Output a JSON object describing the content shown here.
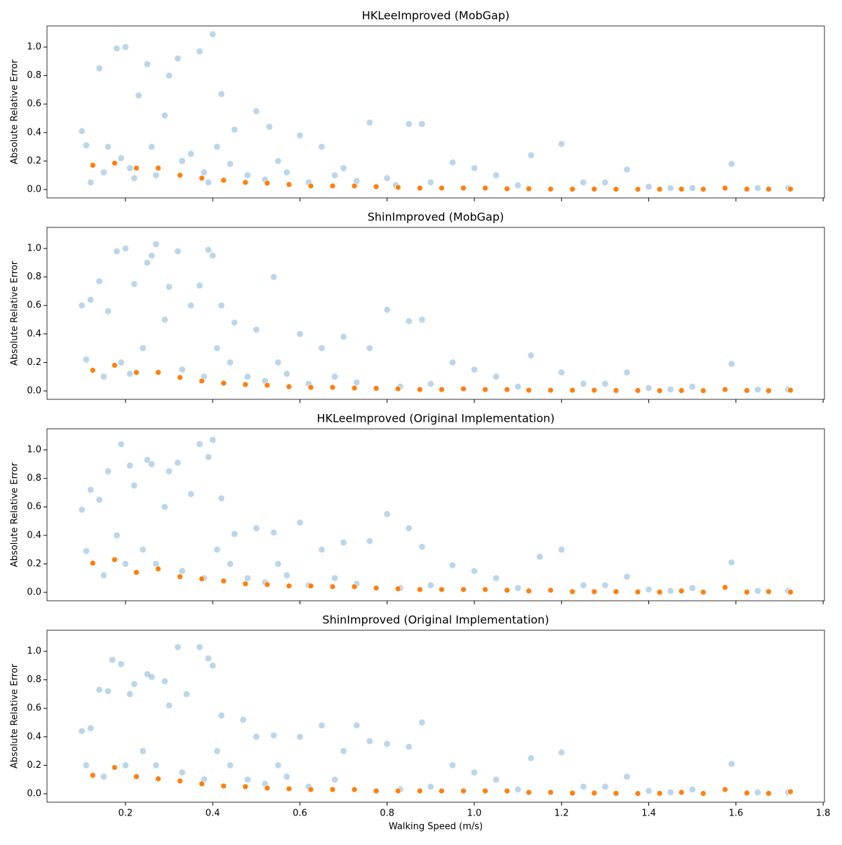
{
  "chart_data": [
    {
      "type": "scatter",
      "title": "HKLeeImproved (MobGap)",
      "ylabel": "Absolute Relative Error",
      "xlim": [
        0.02,
        1.803
      ],
      "ylim": [
        -0.059,
        1.148
      ],
      "yticks": [
        {
          "value": 0,
          "label": "0.0"
        },
        0.2,
        0.4,
        0.6,
        0.8,
        {
          "value": 1,
          "label": "1.0"
        }
      ],
      "series": [
        {
          "color": "#1f77b4",
          "x": [
            0.1,
            0.11,
            0.12,
            0.14,
            0.15,
            0.16,
            0.18,
            0.19,
            0.2,
            0.21,
            0.22,
            0.23,
            0.25,
            0.26,
            0.27,
            0.29,
            0.3,
            0.32,
            0.33,
            0.35,
            0.37,
            0.38,
            0.39,
            0.4,
            0.41,
            0.42,
            0.44,
            0.45,
            0.48,
            0.5,
            0.52,
            0.53,
            0.55,
            0.57,
            0.6,
            0.62,
            0.65,
            0.68,
            0.7,
            0.73,
            0.76,
            0.8,
            0.82,
            0.85,
            0.88,
            0.9,
            0.95,
            1.0,
            1.05,
            1.1,
            1.13,
            1.2,
            1.25,
            1.3,
            1.35,
            1.4,
            1.45,
            1.5,
            1.59,
            1.65,
            1.72
          ],
          "y": [
            0.41,
            0.31,
            0.05,
            0.85,
            0.12,
            0.3,
            0.99,
            0.22,
            1.0,
            0.15,
            0.08,
            0.66,
            0.88,
            0.3,
            0.1,
            0.52,
            0.8,
            0.92,
            0.2,
            0.25,
            0.97,
            0.12,
            0.05,
            1.09,
            0.3,
            0.67,
            0.18,
            0.42,
            0.1,
            0.55,
            0.07,
            0.44,
            0.2,
            0.12,
            0.38,
            0.05,
            0.3,
            0.1,
            0.15,
            0.06,
            0.47,
            0.08,
            0.03,
            0.46,
            0.46,
            0.05,
            0.19,
            0.15,
            0.1,
            0.03,
            0.24,
            0.32,
            0.05,
            0.05,
            0.14,
            0.02,
            0.01,
            0.01,
            0.18,
            0.01,
            0.01
          ]
        },
        {
          "color": "#ff7f0e",
          "x": [
            0.125,
            0.175,
            0.225,
            0.275,
            0.325,
            0.375,
            0.425,
            0.475,
            0.525,
            0.575,
            0.625,
            0.675,
            0.725,
            0.775,
            0.825,
            0.875,
            0.925,
            0.975,
            1.025,
            1.075,
            1.125,
            1.175,
            1.225,
            1.275,
            1.325,
            1.375,
            1.425,
            1.475,
            1.525,
            1.575,
            1.625,
            1.675,
            1.725
          ],
          "y": [
            0.17,
            0.185,
            0.15,
            0.15,
            0.1,
            0.08,
            0.065,
            0.05,
            0.045,
            0.035,
            0.025,
            0.025,
            0.025,
            0.02,
            0.015,
            0.01,
            0.01,
            0.01,
            0.01,
            0.005,
            0.005,
            0.003,
            0.003,
            0.003,
            0.002,
            0.002,
            0.002,
            0.003,
            0.002,
            0.01,
            0.003,
            0.003,
            0.003
          ]
        }
      ]
    },
    {
      "type": "scatter",
      "title": "ShinImproved (MobGap)",
      "ylabel": "Absolute Relative Error",
      "xlim": [
        0.02,
        1.803
      ],
      "ylim": [
        -0.059,
        1.148
      ],
      "yticks": [
        {
          "value": 0,
          "label": "0.0"
        },
        0.2,
        0.4,
        0.6,
        0.8,
        {
          "value": 1,
          "label": "1.0"
        }
      ],
      "series": [
        {
          "color": "#1f77b4",
          "x": [
            0.1,
            0.11,
            0.12,
            0.14,
            0.15,
            0.16,
            0.18,
            0.19,
            0.2,
            0.21,
            0.22,
            0.24,
            0.25,
            0.26,
            0.27,
            0.29,
            0.3,
            0.32,
            0.33,
            0.35,
            0.37,
            0.38,
            0.39,
            0.4,
            0.41,
            0.42,
            0.44,
            0.45,
            0.48,
            0.5,
            0.52,
            0.54,
            0.55,
            0.57,
            0.6,
            0.62,
            0.65,
            0.68,
            0.7,
            0.73,
            0.76,
            0.8,
            0.83,
            0.85,
            0.88,
            0.9,
            0.95,
            1.0,
            1.05,
            1.1,
            1.13,
            1.2,
            1.25,
            1.3,
            1.35,
            1.4,
            1.45,
            1.5,
            1.59,
            1.65,
            1.72
          ],
          "y": [
            0.6,
            0.22,
            0.64,
            0.77,
            0.1,
            0.56,
            0.98,
            0.2,
            1.0,
            0.12,
            0.75,
            0.3,
            0.9,
            0.95,
            1.03,
            0.5,
            0.73,
            0.98,
            0.15,
            0.6,
            0.74,
            0.1,
            0.99,
            0.95,
            0.3,
            0.6,
            0.2,
            0.48,
            0.1,
            0.43,
            0.07,
            0.8,
            0.2,
            0.12,
            0.4,
            0.05,
            0.3,
            0.1,
            0.38,
            0.06,
            0.3,
            0.57,
            0.03,
            0.49,
            0.5,
            0.05,
            0.2,
            0.15,
            0.1,
            0.03,
            0.25,
            0.13,
            0.05,
            0.05,
            0.13,
            0.02,
            0.01,
            0.03,
            0.19,
            0.01,
            0.01
          ]
        },
        {
          "color": "#ff7f0e",
          "x": [
            0.125,
            0.175,
            0.225,
            0.275,
            0.325,
            0.375,
            0.425,
            0.475,
            0.525,
            0.575,
            0.625,
            0.675,
            0.725,
            0.775,
            0.825,
            0.875,
            0.925,
            0.975,
            1.025,
            1.075,
            1.125,
            1.175,
            1.225,
            1.275,
            1.325,
            1.375,
            1.425,
            1.475,
            1.525,
            1.575,
            1.625,
            1.675,
            1.725
          ],
          "y": [
            0.145,
            0.18,
            0.13,
            0.13,
            0.095,
            0.07,
            0.055,
            0.045,
            0.04,
            0.03,
            0.025,
            0.025,
            0.02,
            0.018,
            0.015,
            0.01,
            0.01,
            0.015,
            0.01,
            0.01,
            0.005,
            0.005,
            0.005,
            0.005,
            0.003,
            0.003,
            0.002,
            0.003,
            0.002,
            0.01,
            0.003,
            0.002,
            0.005
          ]
        }
      ]
    },
    {
      "type": "scatter",
      "title": "HKLeeImproved (Original Implementation)",
      "ylabel": "Absolute Relative Error",
      "xlim": [
        0.02,
        1.803
      ],
      "ylim": [
        -0.059,
        1.148
      ],
      "yticks": [
        {
          "value": 0,
          "label": "0.0"
        },
        0.2,
        0.4,
        0.6,
        0.8,
        {
          "value": 1,
          "label": "1.0"
        }
      ],
      "series": [
        {
          "color": "#1f77b4",
          "x": [
            0.1,
            0.11,
            0.12,
            0.14,
            0.15,
            0.16,
            0.18,
            0.19,
            0.2,
            0.21,
            0.22,
            0.24,
            0.25,
            0.26,
            0.27,
            0.29,
            0.3,
            0.32,
            0.33,
            0.35,
            0.37,
            0.38,
            0.39,
            0.4,
            0.41,
            0.42,
            0.44,
            0.45,
            0.48,
            0.5,
            0.52,
            0.54,
            0.55,
            0.57,
            0.6,
            0.62,
            0.65,
            0.68,
            0.7,
            0.73,
            0.76,
            0.8,
            0.83,
            0.85,
            0.88,
            0.9,
            0.95,
            1.0,
            1.05,
            1.1,
            1.15,
            1.2,
            1.25,
            1.3,
            1.35,
            1.4,
            1.45,
            1.5,
            1.59,
            1.65,
            1.72
          ],
          "y": [
            0.58,
            0.29,
            0.72,
            0.65,
            0.12,
            0.85,
            0.4,
            1.04,
            0.2,
            0.89,
            0.75,
            0.3,
            0.93,
            0.9,
            0.2,
            0.6,
            0.85,
            0.91,
            0.15,
            0.69,
            1.04,
            0.1,
            0.95,
            1.07,
            0.3,
            0.66,
            0.2,
            0.41,
            0.1,
            0.45,
            0.07,
            0.42,
            0.2,
            0.12,
            0.49,
            0.05,
            0.3,
            0.1,
            0.35,
            0.06,
            0.36,
            0.55,
            0.03,
            0.45,
            0.32,
            0.05,
            0.19,
            0.15,
            0.1,
            0.03,
            0.25,
            0.3,
            0.05,
            0.05,
            0.11,
            0.02,
            0.01,
            0.03,
            0.21,
            0.01,
            0.01
          ]
        },
        {
          "color": "#ff7f0e",
          "x": [
            0.125,
            0.175,
            0.225,
            0.275,
            0.325,
            0.375,
            0.425,
            0.475,
            0.525,
            0.575,
            0.625,
            0.675,
            0.725,
            0.775,
            0.825,
            0.875,
            0.925,
            0.975,
            1.025,
            1.075,
            1.125,
            1.175,
            1.225,
            1.275,
            1.325,
            1.375,
            1.425,
            1.475,
            1.525,
            1.575,
            1.625,
            1.675,
            1.725
          ],
          "y": [
            0.205,
            0.23,
            0.14,
            0.165,
            0.11,
            0.095,
            0.08,
            0.06,
            0.055,
            0.045,
            0.045,
            0.04,
            0.04,
            0.03,
            0.025,
            0.02,
            0.02,
            0.02,
            0.02,
            0.015,
            0.01,
            0.015,
            0.005,
            0.005,
            0.005,
            0.003,
            0.002,
            0.01,
            0.002,
            0.035,
            0.002,
            0.005,
            0.002
          ]
        }
      ]
    },
    {
      "type": "scatter",
      "title": "ShinImproved (Original Implementation)",
      "ylabel": "Absolute Relative Error",
      "xlabel": "Walking Speed (m/s)",
      "xlim": [
        0.02,
        1.803
      ],
      "ylim": [
        -0.059,
        1.148
      ],
      "xticks": [
        0.2,
        0.4,
        0.6,
        0.8,
        {
          "value": 1,
          "label": "1.0"
        },
        1.2,
        1.4,
        1.6,
        1.8
      ],
      "yticks": [
        {
          "value": 0,
          "label": "0.0"
        },
        0.2,
        0.4,
        0.6,
        0.8,
        {
          "value": 1,
          "label": "1.0"
        }
      ],
      "series": [
        {
          "color": "#1f77b4",
          "x": [
            0.1,
            0.11,
            0.12,
            0.14,
            0.15,
            0.16,
            0.17,
            0.19,
            0.2,
            0.21,
            0.22,
            0.24,
            0.25,
            0.26,
            0.27,
            0.29,
            0.3,
            0.32,
            0.33,
            0.34,
            0.37,
            0.38,
            0.39,
            0.4,
            0.41,
            0.42,
            0.44,
            0.47,
            0.48,
            0.5,
            0.52,
            0.54,
            0.55,
            0.57,
            0.6,
            0.62,
            0.65,
            0.68,
            0.7,
            0.73,
            0.76,
            0.8,
            0.83,
            0.85,
            0.88,
            0.9,
            0.95,
            1.0,
            1.05,
            1.1,
            1.13,
            1.2,
            1.25,
            1.3,
            1.35,
            1.4,
            1.45,
            1.5,
            1.59,
            1.65,
            1.72
          ],
          "y": [
            0.44,
            0.2,
            0.46,
            0.73,
            0.12,
            0.72,
            0.94,
            0.91,
            0.2,
            0.7,
            0.77,
            0.3,
            0.84,
            0.82,
            0.2,
            0.79,
            0.62,
            1.03,
            0.15,
            0.7,
            1.03,
            0.1,
            0.95,
            0.9,
            0.3,
            0.55,
            0.2,
            0.52,
            0.1,
            0.4,
            0.07,
            0.41,
            0.2,
            0.12,
            0.4,
            0.05,
            0.48,
            0.1,
            0.3,
            0.48,
            0.37,
            0.35,
            0.03,
            0.33,
            0.5,
            0.05,
            0.2,
            0.15,
            0.1,
            0.03,
            0.25,
            0.29,
            0.05,
            0.05,
            0.12,
            0.02,
            0.01,
            0.03,
            0.21,
            0.01,
            0.01
          ]
        },
        {
          "color": "#ff7f0e",
          "x": [
            0.125,
            0.175,
            0.225,
            0.275,
            0.325,
            0.375,
            0.425,
            0.475,
            0.525,
            0.575,
            0.625,
            0.675,
            0.725,
            0.775,
            0.825,
            0.875,
            0.925,
            0.975,
            1.025,
            1.075,
            1.125,
            1.175,
            1.225,
            1.275,
            1.325,
            1.375,
            1.425,
            1.475,
            1.525,
            1.575,
            1.625,
            1.675,
            1.725
          ],
          "y": [
            0.13,
            0.185,
            0.12,
            0.105,
            0.09,
            0.07,
            0.055,
            0.05,
            0.04,
            0.035,
            0.03,
            0.03,
            0.03,
            0.02,
            0.02,
            0.02,
            0.02,
            0.02,
            0.02,
            0.02,
            0.01,
            0.01,
            0.005,
            0.005,
            0.003,
            0.002,
            0.003,
            0.01,
            0.002,
            0.03,
            0.005,
            0.003,
            0.015
          ]
        }
      ]
    }
  ]
}
